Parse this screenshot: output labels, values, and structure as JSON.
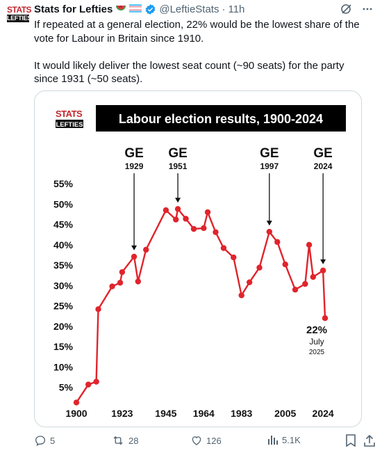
{
  "tweet": {
    "author_name": "Stats for Lefties",
    "author_handle": "@LeftieStats",
    "separator": "·",
    "time": "11h",
    "avatar": {
      "line1": "STATS",
      "line2": "LEFTIES"
    },
    "paragraphs": [
      "If repeated at a general election, 22% would be the lowest share of the vote for Labour in Britain since 1910.",
      "It would likely deliver the lowest seat count (~90 seats) for the party since 1931 (~50 seats)."
    ],
    "icons": {
      "watermelon": "watermelon-emoji-icon",
      "flag": "trans-flag-emoji-icon",
      "verified": "verified-badge-icon",
      "grok": "grok-icon",
      "more": "more-icon"
    }
  },
  "actions": {
    "replies": "5",
    "retweets": "28",
    "likes": "126",
    "views": "5.1K"
  },
  "chart_data": {
    "type": "line",
    "title": "Labour election results, 1900-2024",
    "logo": {
      "line1": "STATS",
      "line2": "LEFTIES"
    },
    "color": "#e0242c",
    "x_tick_labels": [
      "1900",
      "1923",
      "1945",
      "1964",
      "1983",
      "2005",
      "2024"
    ],
    "y_tick_labels": [
      "55%",
      "50%",
      "45%",
      "40%",
      "35%",
      "30%",
      "25%",
      "20%",
      "15%",
      "10%",
      "5%"
    ],
    "ylim": [
      0,
      57
    ],
    "points": [
      {
        "x": 1900,
        "y": 1.3
      },
      {
        "x": 1906,
        "y": 5.7
      },
      {
        "x": 1910,
        "y": 6.4
      },
      {
        "x": 1911,
        "y": 24.2
      },
      {
        "x": 1918,
        "y": 29.8
      },
      {
        "x": 1922,
        "y": 30.7
      },
      {
        "x": 1923,
        "y": 33.3
      },
      {
        "x": 1929,
        "y": 37.1
      },
      {
        "x": 1931,
        "y": 31.0
      },
      {
        "x": 1935,
        "y": 38.8
      },
      {
        "x": 1945,
        "y": 48.5
      },
      {
        "x": 1950,
        "y": 46.2
      },
      {
        "x": 1951,
        "y": 48.8
      },
      {
        "x": 1955,
        "y": 46.4
      },
      {
        "x": 1959,
        "y": 43.9
      },
      {
        "x": 1964,
        "y": 44.1
      },
      {
        "x": 1966,
        "y": 48.0
      },
      {
        "x": 1970,
        "y": 43.1
      },
      {
        "x": 1974,
        "y": 39.2
      },
      {
        "x": 1979,
        "y": 36.9
      },
      {
        "x": 1983,
        "y": 27.6
      },
      {
        "x": 1987,
        "y": 30.8
      },
      {
        "x": 1992,
        "y": 34.4
      },
      {
        "x": 1997,
        "y": 43.2
      },
      {
        "x": 2001,
        "y": 40.7
      },
      {
        "x": 2005,
        "y": 35.2
      },
      {
        "x": 2010,
        "y": 29.0
      },
      {
        "x": 2015,
        "y": 30.4
      },
      {
        "x": 2017,
        "y": 40.0
      },
      {
        "x": 2019,
        "y": 32.1
      },
      {
        "x": 2024,
        "y": 33.7
      },
      {
        "x": 2025,
        "y": 22.0
      }
    ],
    "annotations": [
      {
        "top": "GE",
        "bottom": "1929",
        "year": 1929
      },
      {
        "top": "GE",
        "bottom": "1951",
        "year": 1951
      },
      {
        "top": "GE",
        "bottom": "1997",
        "year": 1997
      },
      {
        "top": "GE",
        "bottom": "2024",
        "year": 2024
      }
    ],
    "end_label": {
      "value": "22%",
      "month": "July",
      "year": "2025"
    }
  }
}
